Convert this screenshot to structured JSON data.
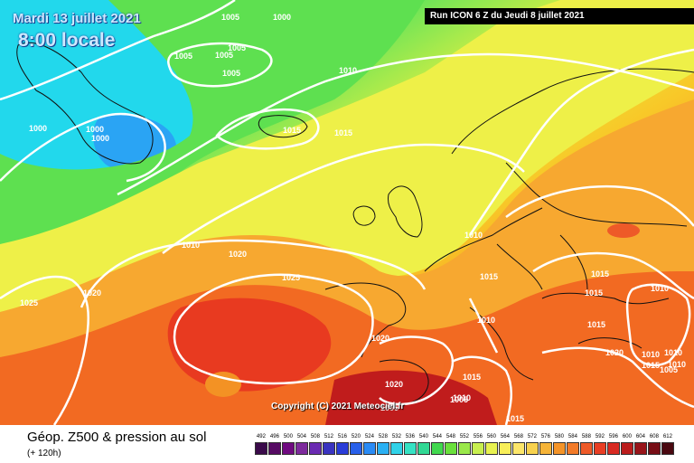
{
  "header": {
    "date": "Mardi 13 juillet 2021",
    "time": "8:00 locale",
    "run": "Run ICON 6 Z du Jeudi 8 juillet 2021"
  },
  "map": {
    "copyright": "Copyright (C) 2021 Meteociel.fr",
    "isobar_labels": [
      "1005",
      "1000",
      "1005",
      "1005",
      "1005",
      "1005",
      "1000",
      "1000",
      "1000",
      "1010",
      "1015",
      "1015",
      "1010",
      "1020",
      "1025",
      "1020",
      "1025",
      "1010",
      "1015",
      "1015",
      "1015",
      "1010",
      "1010",
      "1020",
      "1015",
      "1020",
      "1010",
      "1020",
      "1015",
      "1010",
      "1015",
      "1010",
      "1005",
      "1005",
      "1005",
      "1010",
      "1015"
    ]
  },
  "footer": {
    "field": "Géop. Z500 & pression au sol",
    "lead": "(+ 120h)"
  },
  "scale": {
    "values": [
      "492",
      "496",
      "500",
      "504",
      "508",
      "512",
      "516",
      "520",
      "524",
      "528",
      "532",
      "536",
      "540",
      "544",
      "548",
      "552",
      "556",
      "560",
      "564",
      "568",
      "572",
      "576",
      "580",
      "584",
      "588",
      "592",
      "596",
      "600",
      "604",
      "608",
      "612"
    ],
    "colors": [
      "#3a0a4a",
      "#560a63",
      "#6f0a80",
      "#7d2a9c",
      "#6a2ab2",
      "#3a34c0",
      "#2a3cd8",
      "#2860ea",
      "#2a8bf5",
      "#2ab0f2",
      "#30d2e8",
      "#36e2c4",
      "#30d894",
      "#40d84e",
      "#6ae03c",
      "#9ae84a",
      "#c8ef50",
      "#e8f250",
      "#f8ee58",
      "#fce66a",
      "#f8d24e",
      "#f6b438",
      "#f49428",
      "#f27a28",
      "#ee5a28",
      "#e83e24",
      "#d82a22",
      "#bb1c1c",
      "#98141a",
      "#780e16",
      "#4a0810"
    ]
  }
}
